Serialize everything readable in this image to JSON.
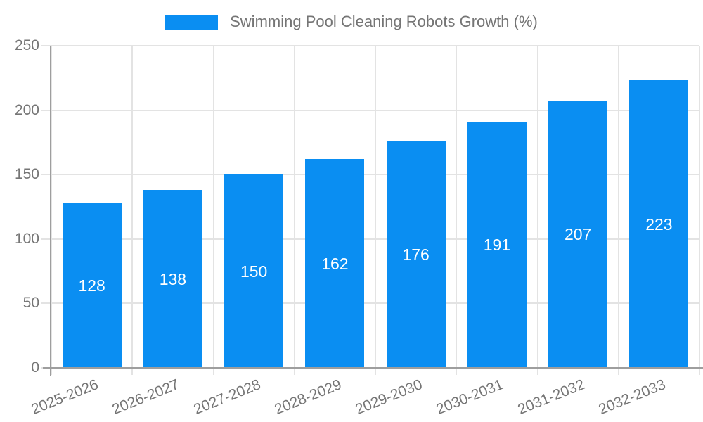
{
  "chart_data": {
    "type": "bar",
    "title": "Swimming Pool Cleaning Robots Growth (%)",
    "legend": {
      "label": "Swimming Pool Cleaning Robots Growth (%)",
      "position": "top"
    },
    "categories": [
      "2025-2026",
      "2026-2027",
      "2027-2028",
      "2028-2029",
      "2029-2030",
      "2030-2031",
      "2031-2032",
      "2032-2033"
    ],
    "values": [
      128,
      138,
      150,
      162,
      176,
      191,
      207,
      223
    ],
    "xlabel": "",
    "ylabel": "",
    "ylim": [
      0,
      250
    ],
    "yticks": [
      0,
      50,
      100,
      150,
      200,
      250
    ],
    "grid": true,
    "bar_labels_inside": true,
    "colors": {
      "bar": "#0a8ef2",
      "bar_label": "#ffffff",
      "grid": "#e3e3e3",
      "axis": "#9e9e9e",
      "tick_text": "#757575",
      "background": "#ffffff"
    }
  }
}
